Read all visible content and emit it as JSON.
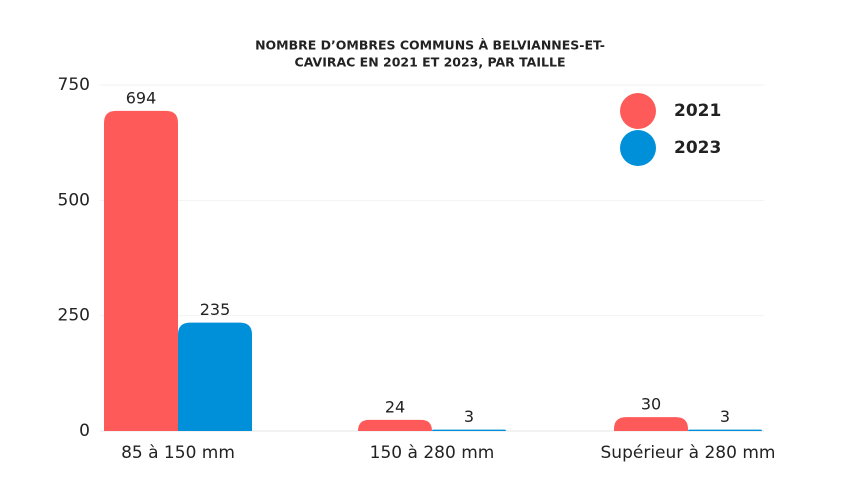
{
  "chart_data": {
    "type": "bar",
    "title": [
      "NOMBRE D’OMBRES COMMUNS À BELVIANNES-ET-",
      "CAVIRAC EN 2021 ET 2023, PAR TAILLE"
    ],
    "categories": [
      "85 à 150 mm",
      "150 à 280 mm",
      "Supérieur à 280 mm"
    ],
    "series": [
      {
        "name": "2021",
        "color": "#ff5a5a",
        "values": [
          694,
          24,
          30
        ]
      },
      {
        "name": "2023",
        "color": "#0090d9",
        "values": [
          235,
          3,
          3
        ]
      }
    ],
    "ylim": [
      0,
      750
    ],
    "yticks": [
      0,
      250,
      500,
      750
    ],
    "grid": true,
    "legend": "top-right"
  }
}
